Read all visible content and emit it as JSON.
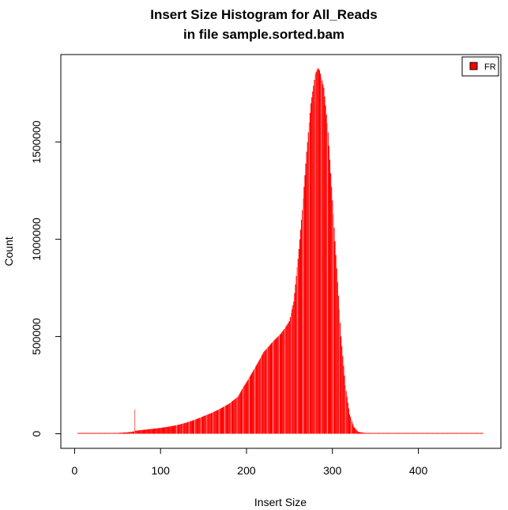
{
  "chart_data": {
    "type": "bar",
    "title": "Insert Size Histogram for All_Reads",
    "subtitle": "in file sample.sorted.bam",
    "xlabel": "Insert Size",
    "ylabel": "Count",
    "xlim": [
      -16,
      496
    ],
    "ylim": [
      -75000,
      1950000
    ],
    "x_ticks": [
      0,
      100,
      200,
      300,
      400
    ],
    "x_tick_labels": [
      "0",
      "100",
      "200",
      "300",
      "400"
    ],
    "y_ticks": [
      0,
      500000,
      1000000,
      1500000
    ],
    "y_tick_labels": [
      "0",
      "500000",
      "1000000",
      "1500000"
    ],
    "grid": false,
    "legend_position": "top-right",
    "series": [
      {
        "name": "FR",
        "color": "#ff0000",
        "points": [
          [
            4,
            0
          ],
          [
            20,
            500
          ],
          [
            30,
            1000
          ],
          [
            40,
            2000
          ],
          [
            50,
            4000
          ],
          [
            60,
            7000
          ],
          [
            65,
            9000
          ],
          [
            69,
            12000
          ],
          [
            70,
            125000
          ],
          [
            71,
            16000
          ],
          [
            72,
            16000
          ],
          [
            80,
            20000
          ],
          [
            90,
            25000
          ],
          [
            100,
            30000
          ],
          [
            110,
            37000
          ],
          [
            120,
            45000
          ],
          [
            130,
            57000
          ],
          [
            140,
            72000
          ],
          [
            150,
            90000
          ],
          [
            160,
            108000
          ],
          [
            170,
            130000
          ],
          [
            180,
            155000
          ],
          [
            190,
            190000
          ],
          [
            195,
            230000
          ],
          [
            200,
            265000
          ],
          [
            210,
            340000
          ],
          [
            220,
            420000
          ],
          [
            230,
            470000
          ],
          [
            240,
            515000
          ],
          [
            245,
            545000
          ],
          [
            250,
            580000
          ],
          [
            255,
            680000
          ],
          [
            260,
            900000
          ],
          [
            265,
            1150000
          ],
          [
            270,
            1450000
          ],
          [
            275,
            1700000
          ],
          [
            280,
            1850000
          ],
          [
            283,
            1880000
          ],
          [
            285,
            1870000
          ],
          [
            290,
            1780000
          ],
          [
            295,
            1550000
          ],
          [
            300,
            1200000
          ],
          [
            305,
            850000
          ],
          [
            310,
            500000
          ],
          [
            315,
            250000
          ],
          [
            320,
            100000
          ],
          [
            325,
            35000
          ],
          [
            330,
            10000
          ],
          [
            340,
            3000
          ],
          [
            360,
            1000
          ],
          [
            400,
            500
          ],
          [
            475,
            200
          ]
        ]
      }
    ]
  },
  "legend": {
    "label": "FR",
    "swatch_color": "#ff0000"
  }
}
